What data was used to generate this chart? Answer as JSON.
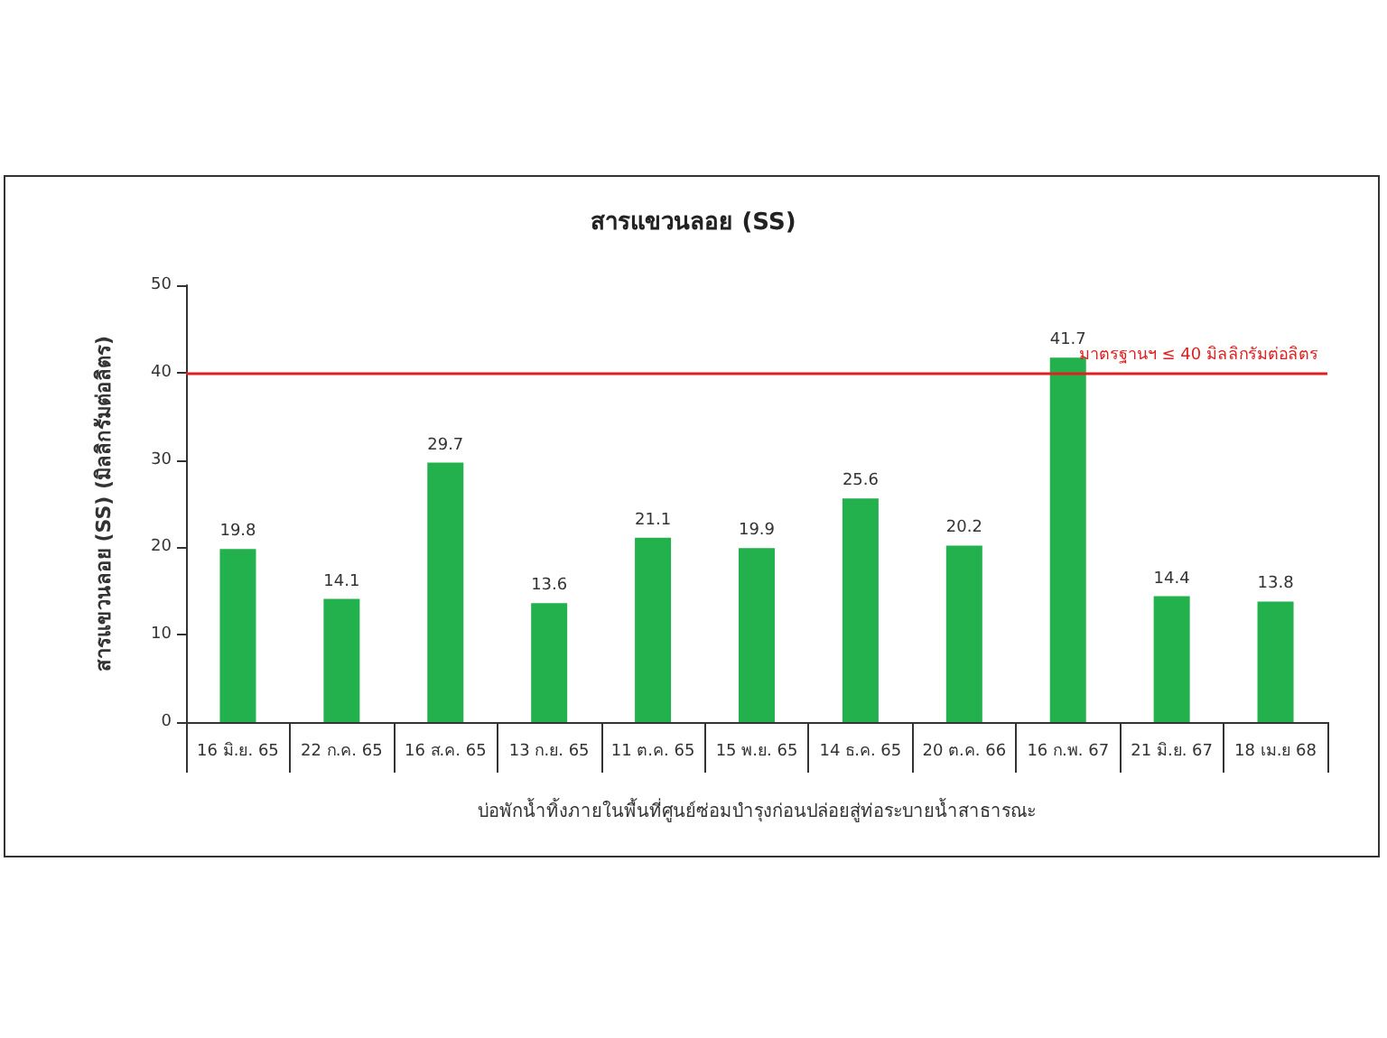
{
  "chart_data": {
    "type": "bar",
    "title": "สารแขวนลอย (SS)",
    "ylabel": "สารแขวนลอย (SS) (มิลลิกรัมต่อลิตร)",
    "xlabel": "บ่อพักน้ำทิ้งภายในพื้นที่ศูนย์ซ่อมบำรุงก่อนปล่อยสู่ท่อระบายน้ำสาธารณะ",
    "categories": [
      "16 มิ.ย. 65",
      "22 ก.ค. 65",
      "16 ส.ค. 65",
      "13 ก.ย. 65",
      "11 ต.ค. 65",
      "15 พ.ย. 65",
      "14 ธ.ค. 65",
      "20 ต.ค. 66",
      "16 ก.พ. 67",
      "21 มิ.ย. 67",
      "18 เม.ย 68"
    ],
    "values": [
      19.8,
      14.1,
      29.7,
      13.6,
      21.1,
      19.9,
      25.6,
      20.2,
      41.7,
      14.4,
      13.8
    ],
    "color": "#22b14c",
    "ylim": [
      0,
      50
    ],
    "yticks": [
      0,
      10,
      20,
      30,
      40,
      50
    ],
    "grid": false,
    "data_labels": true,
    "ref_lines": [
      {
        "axis": "y",
        "value": 40,
        "label": "มาตรฐานฯ ≤ 40 มิลลิกรัมต่อลิตร",
        "color": "#e02020"
      }
    ]
  }
}
